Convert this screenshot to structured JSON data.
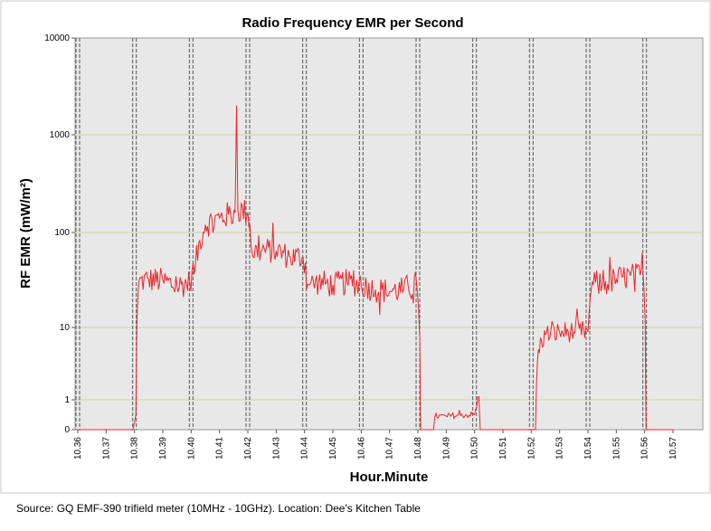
{
  "caption": "Source: GQ EMF-390 trifield meter (10MHz - 10GHz). Location: Dee's Kitchen Table",
  "colors": {
    "series": "#e8262b",
    "plot_bg": "#e8e8e8",
    "gridline": "#cdd39a",
    "marker_line": "#555555"
  },
  "chart_data": {
    "type": "line",
    "title": "Radio Frequency EMR per Second",
    "xlabel": "Hour.Minute",
    "ylabel": "RF EMR (mW/m²)",
    "y_scale": "log (with 0 floor)",
    "y_ticks": [
      "0",
      "1",
      "10",
      "100",
      "1000",
      "10000"
    ],
    "x_ticks": [
      "10.36",
      "10.37",
      "10.38",
      "10.39",
      "10.40",
      "10.41",
      "10.42",
      "10.43",
      "10.44",
      "10.45",
      "10.46",
      "10.47",
      "10.48",
      "10.49",
      "10.50",
      "10.51",
      "10.52",
      "10.53",
      "10.54",
      "10.55",
      "10.56",
      "10.57"
    ],
    "xlim": [
      10.36,
      10.57
    ],
    "ylim": [
      0,
      10000
    ],
    "grid": "horizontal",
    "legend": "none",
    "vertical_markers": [
      10.36,
      10.38,
      10.4,
      10.42,
      10.44,
      10.46,
      10.48,
      10.5,
      10.52,
      10.54,
      10.56
    ],
    "series": [
      {
        "points": [
          [
            10.36,
            0
          ],
          [
            10.3795,
            0
          ],
          [
            10.3805,
            0.5
          ],
          [
            10.3815,
            30
          ],
          [
            10.385,
            32
          ],
          [
            10.39,
            31
          ],
          [
            10.395,
            27
          ],
          [
            10.3995,
            30
          ],
          [
            10.4015,
            45
          ],
          [
            10.405,
            120
          ],
          [
            10.41,
            140
          ],
          [
            10.4155,
            160
          ],
          [
            10.416,
            2000
          ],
          [
            10.4165,
            170
          ],
          [
            10.42,
            160
          ],
          [
            10.4215,
            62
          ],
          [
            10.425,
            65
          ],
          [
            10.43,
            64
          ],
          [
            10.435,
            55
          ],
          [
            10.4395,
            55
          ],
          [
            10.4415,
            28
          ],
          [
            10.445,
            30
          ],
          [
            10.45,
            28
          ],
          [
            10.455,
            30
          ],
          [
            10.46,
            28
          ],
          [
            10.465,
            25
          ],
          [
            10.47,
            24
          ],
          [
            10.475,
            25
          ],
          [
            10.4795,
            30
          ],
          [
            10.481,
            0
          ],
          [
            10.4855,
            0
          ],
          [
            10.486,
            0.45
          ],
          [
            10.49,
            0.45
          ],
          [
            10.495,
            0.48
          ],
          [
            10.5,
            0.5
          ],
          [
            10.5015,
            1.1
          ],
          [
            10.502,
            0
          ],
          [
            10.52,
            0
          ],
          [
            10.5215,
            0
          ],
          [
            10.5225,
            5
          ],
          [
            10.525,
            8
          ],
          [
            10.53,
            8.5
          ],
          [
            10.535,
            8.6
          ],
          [
            10.54,
            8.7
          ],
          [
            10.5415,
            30
          ],
          [
            10.545,
            28
          ],
          [
            10.55,
            32
          ],
          [
            10.555,
            35
          ],
          [
            10.5595,
            35
          ],
          [
            10.5605,
            0
          ],
          [
            10.57,
            0
          ]
        ]
      }
    ]
  }
}
